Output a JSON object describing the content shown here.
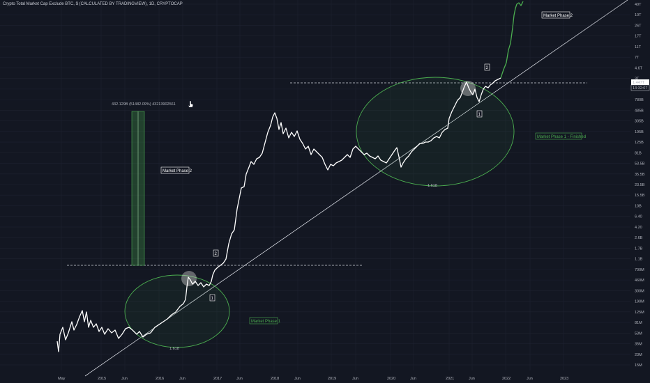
{
  "chart_data": {
    "type": "line",
    "title": "Crypto Total Market Cap Exclude BTC, $ (CALCULATED BY TRADINGVIEW), 1D, CRYPTOCAP",
    "y_scale": "log",
    "grid": true,
    "series_color": "#ffffff",
    "projection_color": "#4caf50",
    "y_ticks": [
      "40T",
      "10T",
      "26T",
      "17T",
      "11T",
      "7T",
      "4.6T",
      "3T",
      "1.9T",
      "780B",
      "485B",
      "305B",
      "195B",
      "125B",
      "81B",
      "53.5B",
      "35.5B",
      "23.5B",
      "15.5B",
      "10B",
      "6.40",
      "4.20",
      "2.6B",
      "1.7B",
      "1.1B",
      "700M",
      "460M",
      "300M",
      "190M",
      "125M",
      "81M",
      "53M",
      "35M",
      "23M",
      "15M"
    ],
    "x_ticks": [
      "May",
      "2015",
      "Jun",
      "2016",
      "Jun",
      "2017",
      "Jun",
      "2018",
      "Jun",
      "2019",
      "Jun",
      "2020",
      "Jun",
      "2021",
      "Jun",
      "2022",
      "Jun",
      "2023"
    ],
    "price_label": "1.447T",
    "countdown_label": "13:32:07",
    "measure_label": "432.129B (51482.09%) 43213902561",
    "annotations": {
      "phase2_left": "Market Phase 2",
      "phase1_left": "Market Phase 1",
      "phase1_finished": "Market Phase 1 - Finished",
      "phase2_right": "Market Phase 2",
      "fib_left": "1.618",
      "fib_right": "1.618",
      "wave1_left": "1",
      "wave2_left": "2",
      "wave1_right": "1",
      "wave2_right": "2"
    }
  }
}
